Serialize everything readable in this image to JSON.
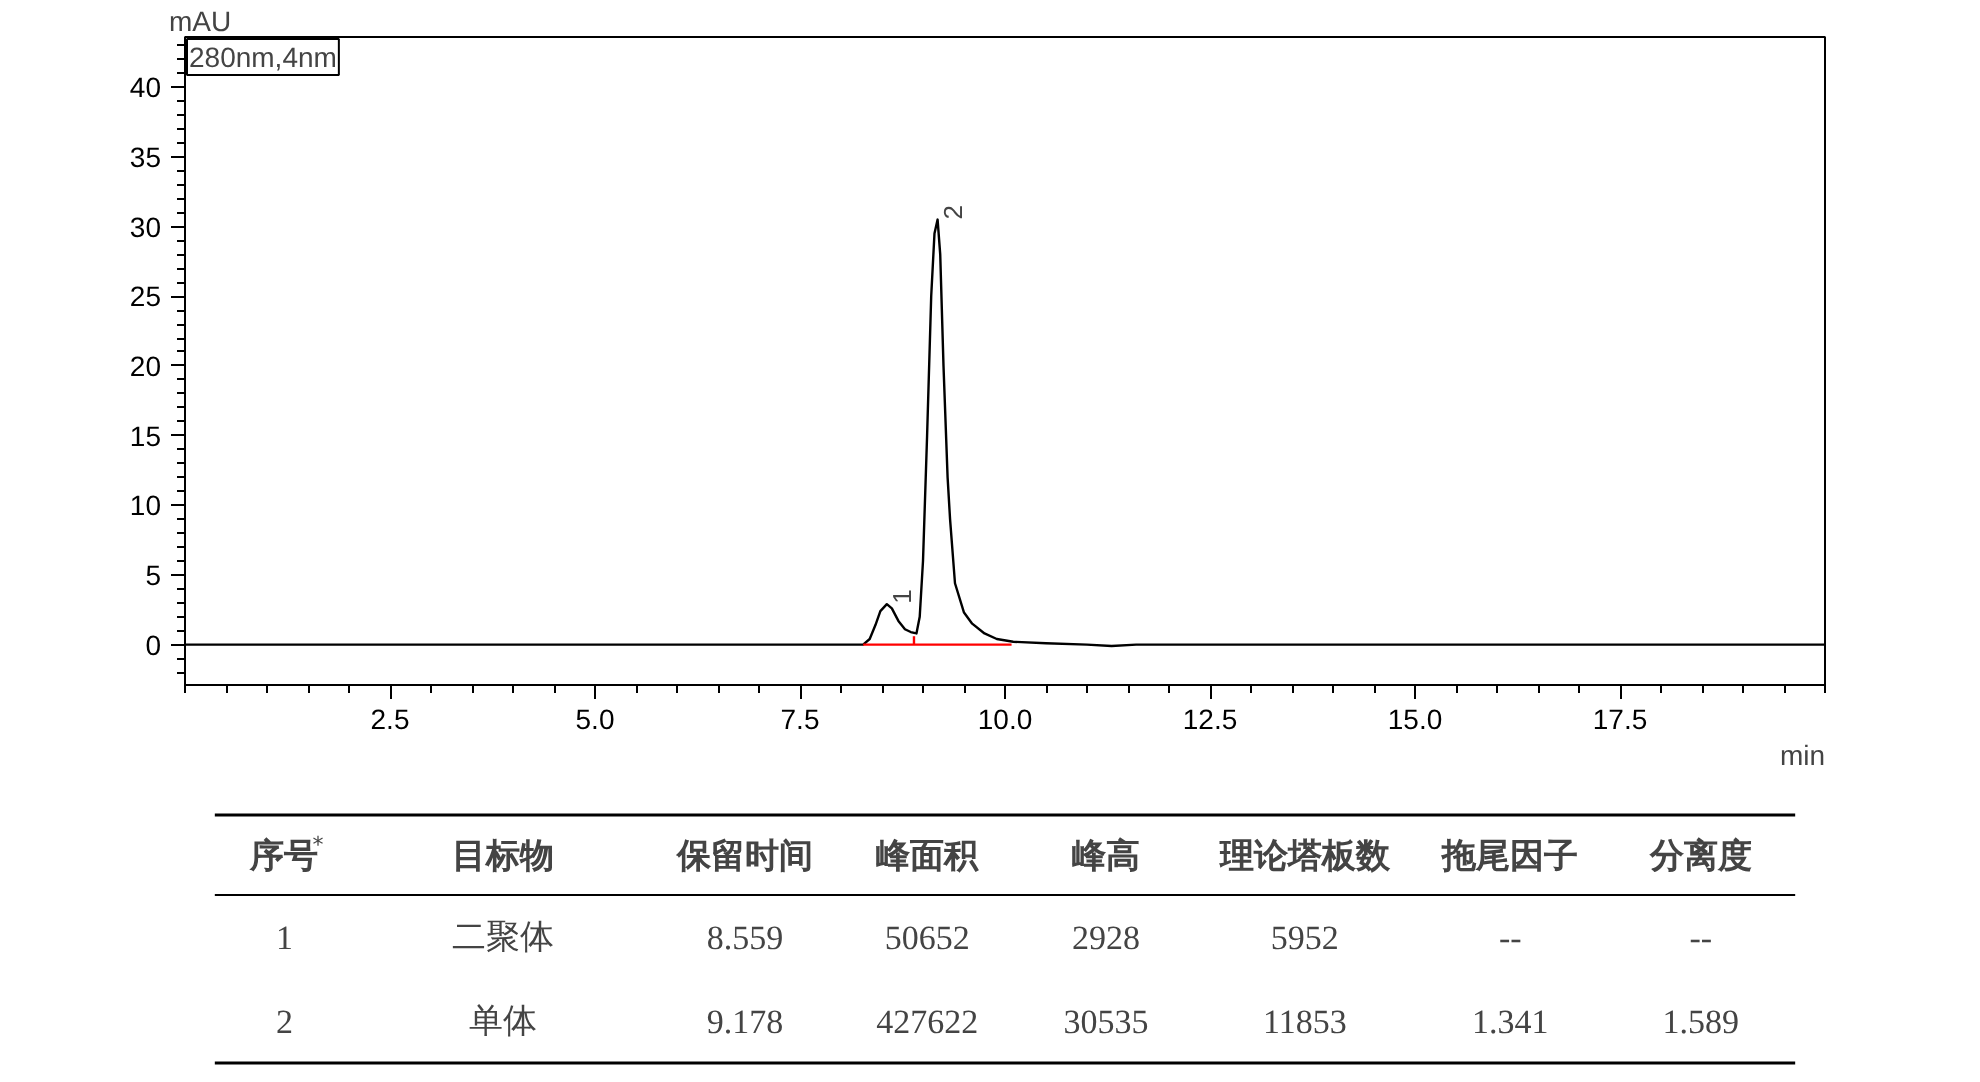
{
  "chart_data": {
    "type": "line",
    "xlabel": "min",
    "ylabel": "mAU",
    "xlim": [
      0,
      20
    ],
    "ylim": [
      -2.9,
      43.6
    ],
    "xticks": [
      2.5,
      {
        "value": 5,
        "label": "5.0"
      },
      7.5,
      {
        "value": 10,
        "label": "10.0"
      },
      12.5,
      {
        "value": 15,
        "label": "15.0"
      },
      17.5
    ],
    "yticks": [
      0,
      5,
      10,
      15,
      20,
      25,
      30,
      35,
      40
    ],
    "grid": false,
    "marker": "none",
    "line_style": "solid",
    "series": [
      {
        "color": "#000000",
        "x": [
          0,
          1,
          2,
          3,
          4,
          5,
          6,
          7,
          7.5,
          8.0,
          8.2,
          8.27,
          8.35,
          8.42,
          8.48,
          8.559,
          8.62,
          8.7,
          8.78,
          8.85,
          8.92,
          8.96,
          9.0,
          9.05,
          9.1,
          9.14,
          9.178,
          9.21,
          9.25,
          9.3,
          9.33,
          9.39,
          9.5,
          9.6,
          9.75,
          9.9,
          10.1,
          10.5,
          11.0,
          11.3,
          11.6,
          12.0,
          12.5,
          13,
          14,
          15,
          16,
          17,
          18,
          19,
          20
        ],
        "values": [
          0,
          0,
          0,
          0,
          0,
          0,
          0,
          0,
          0,
          0,
          0,
          0,
          0.4,
          1.4,
          2.4,
          2.9,
          2.6,
          1.7,
          1.1,
          0.9,
          0.8,
          2,
          6,
          15,
          25,
          29.5,
          30.5,
          28,
          20,
          12,
          9,
          4.4,
          2.3,
          1.5,
          0.8,
          0.4,
          0.2,
          0.1,
          0,
          -0.1,
          0,
          0,
          0,
          0,
          0,
          0,
          0,
          0,
          0,
          0,
          0
        ]
      },
      {
        "color": "#ff0000",
        "x": [
          8.27,
          10.08
        ],
        "values": [
          0,
          0
        ]
      },
      {
        "color": "#ff0000",
        "x": [
          8.89,
          8.89
        ],
        "values": [
          0,
          0.6
        ]
      }
    ],
    "annotations": [
      {
        "text": "1",
        "x": 8.559,
        "y": 2.93
      },
      {
        "text": "2",
        "x": 9.178,
        "y": 30.5
      },
      "280nm,4nm",
      "序号$^{*}$",
      "目标物",
      "保留时间",
      "峰面积",
      "峰高",
      "理论塔板数",
      "拖尾因子",
      "分离度",
      "1",
      "二聚体",
      "8.559",
      "50652",
      "2928",
      "5952",
      "--",
      "--",
      "2",
      "单体",
      "9.178",
      "427622",
      "30535",
      "11853",
      "1.341",
      "1.589"
    ]
  }
}
